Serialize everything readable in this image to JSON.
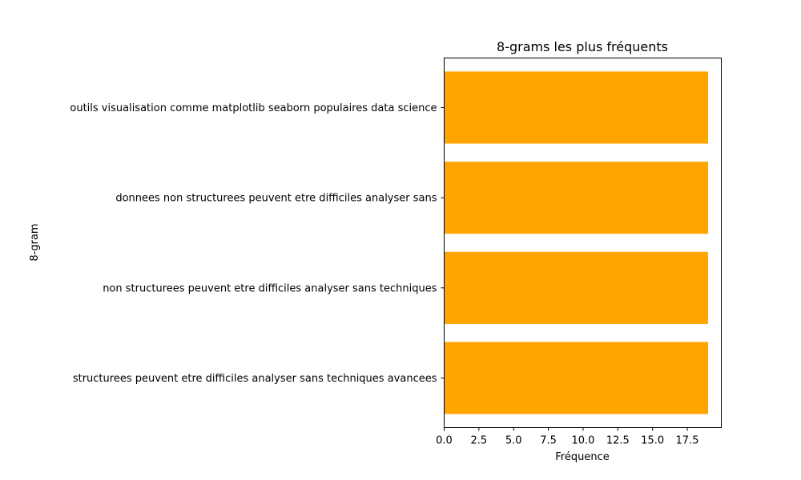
{
  "chart_data": {
    "type": "bar",
    "orientation": "horizontal",
    "title": "8-grams les plus fréquents",
    "xlabel": "Fréquence",
    "ylabel": "8-gram",
    "categories": [
      "outils visualisation comme matplotlib seaborn populaires data science",
      "donnees non structurees peuvent etre difficiles analyser sans",
      "non structurees peuvent etre difficiles analyser sans techniques",
      "structurees peuvent etre difficiles analyser sans techniques avancees"
    ],
    "values": [
      19,
      19,
      19,
      19
    ],
    "xlim": [
      0,
      19.95
    ],
    "xticks": [
      0.0,
      2.5,
      5.0,
      7.5,
      10.0,
      12.5,
      15.0,
      17.5
    ],
    "xtick_labels": [
      "0.0",
      "2.5",
      "5.0",
      "7.5",
      "10.0",
      "12.5",
      "15.0",
      "17.5"
    ],
    "bar_color": "#ffa500",
    "grid": false,
    "legend": "none"
  }
}
